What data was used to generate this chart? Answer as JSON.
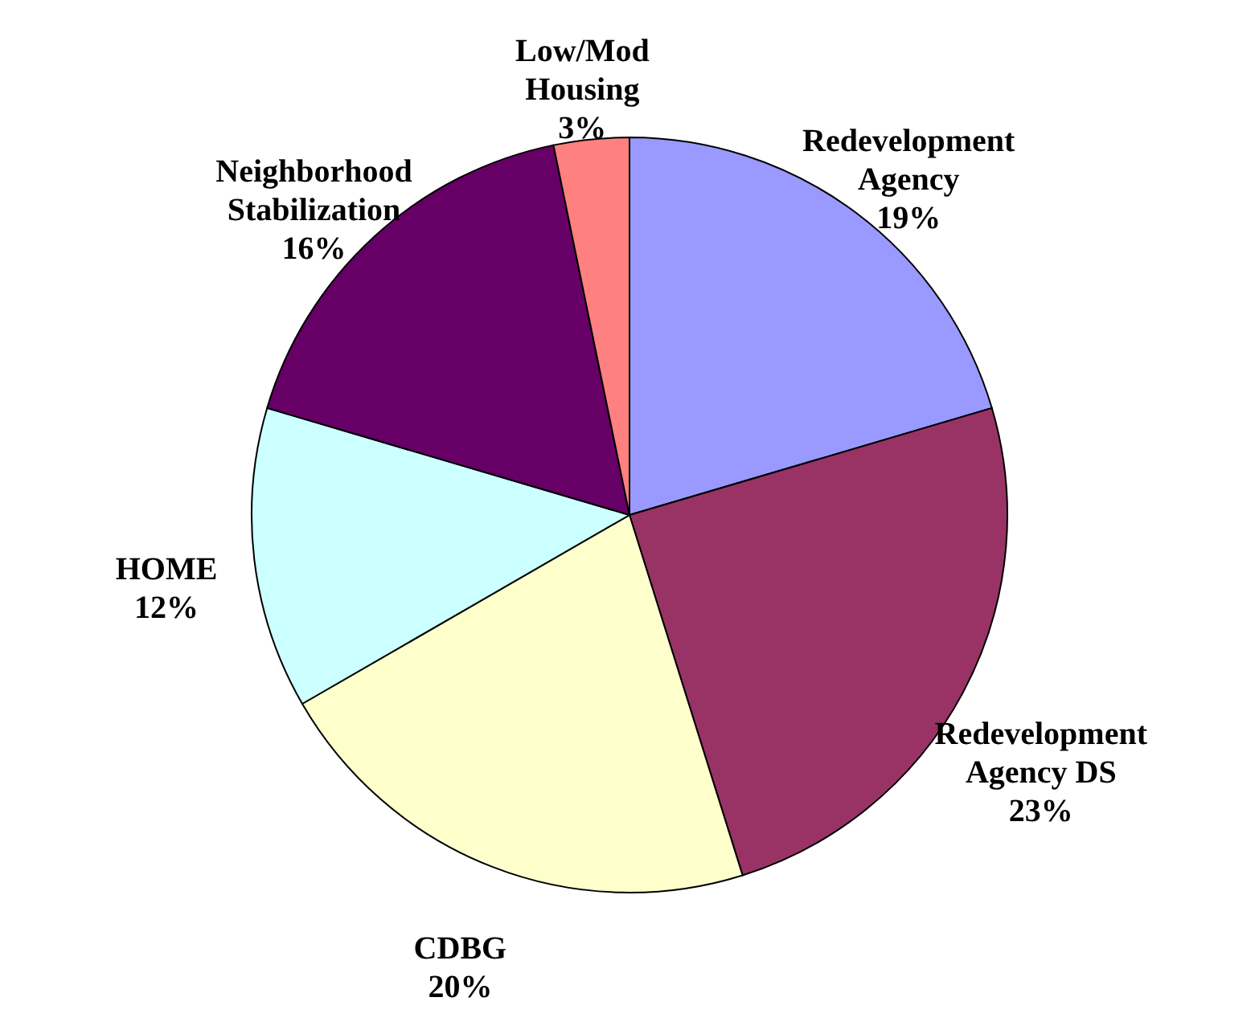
{
  "chart_data": {
    "type": "pie",
    "categories": [
      "Redevelopment Agency",
      "Redevelopment Agency DS",
      "CDBG",
      "HOME",
      "Neighborhood Stabilization",
      "Low/Mod Housing"
    ],
    "values": [
      19,
      23,
      20,
      12,
      16,
      3
    ],
    "value_labels": [
      "19%",
      "23%",
      "20%",
      "12%",
      "16%",
      "3%"
    ],
    "colors": [
      "#9999ff",
      "#993366",
      "#ffffcc",
      "#ccffff",
      "#660066",
      "#ff8080"
    ],
    "legend": false
  }
}
